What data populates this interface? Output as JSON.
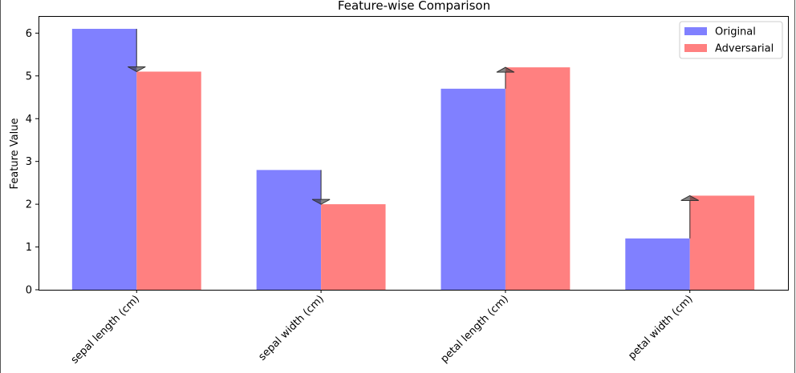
{
  "chart_data": {
    "type": "bar",
    "title": "Feature-wise Comparison",
    "xlabel": "",
    "ylabel": "Feature Value",
    "categories": [
      "sepal length (cm)",
      "sepal width (cm)",
      "petal length (cm)",
      "petal width (cm)"
    ],
    "series": [
      {
        "name": "Original",
        "values": [
          6.1,
          2.8,
          4.7,
          1.2
        ],
        "color": "#8080ff"
      },
      {
        "name": "Adversarial",
        "values": [
          5.1,
          2.0,
          5.2,
          2.2
        ],
        "color": "#ff8080"
      }
    ],
    "yticks": [
      0,
      1,
      2,
      3,
      4,
      5,
      6
    ],
    "ylim": [
      0,
      6.4
    ],
    "grid": false,
    "legend_position": "top-right",
    "arrow_color": "#333333",
    "annotations": "arrows from Original value to Adversarial value for each feature"
  }
}
